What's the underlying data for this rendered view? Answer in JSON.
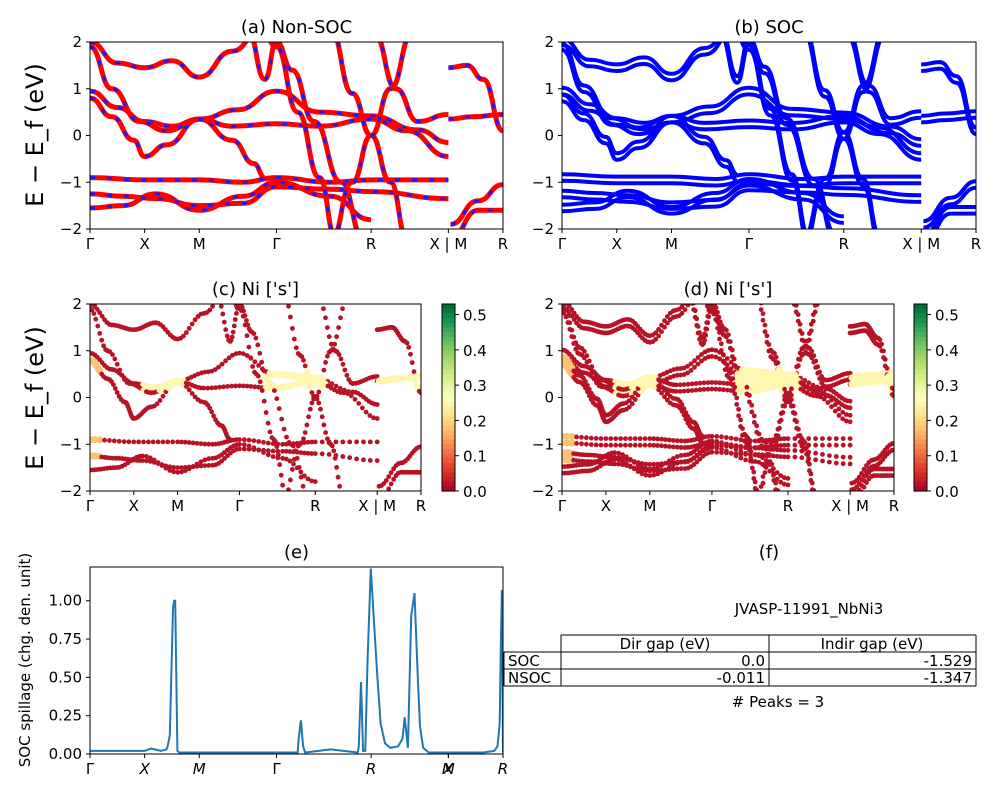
{
  "palette": {
    "nonsoc_red": "#ff0000",
    "nonsoc_blue": "#1a1aff",
    "soc_blue": "#0000ff",
    "spillage_line": "#1f77b4",
    "cmap": [
      "#a50026",
      "#d73027",
      "#f46d43",
      "#fdae61",
      "#fee08b",
      "#ffffbf",
      "#d9ef8b",
      "#a6d96a",
      "#66bd63",
      "#1a9850",
      "#006837"
    ]
  },
  "chart_data": [
    {
      "id": "a",
      "type": "line",
      "title": "(a) Non-SOC",
      "ylabel": "E − E_f (eV)",
      "ylim": [
        -2,
        2
      ],
      "yticks": [
        "2",
        "1",
        "0",
        "−1",
        "−2"
      ],
      "kpath": [
        {
          "label": "Γ",
          "k": 0
        },
        {
          "label": "X",
          "k": 0.5
        },
        {
          "label": "M",
          "k": 1.0
        },
        {
          "label": "Γ",
          "k": 1.707
        },
        {
          "label": "R",
          "k": 2.573
        },
        {
          "label": "X | M",
          "k": 3.28
        },
        {
          "label": "R",
          "k": 3.78
        }
      ],
      "break_after_k": 3.28,
      "style": "red solid with blue dashes"
    },
    {
      "id": "b",
      "type": "line",
      "title": "(b) SOC",
      "ylim": [
        -2,
        2
      ],
      "yticks": [
        "2",
        "1",
        "0",
        "−1",
        "−2"
      ],
      "kpath": [
        {
          "label": "Γ",
          "k": 0
        },
        {
          "label": "X",
          "k": 0.5
        },
        {
          "label": "M",
          "k": 1.0
        },
        {
          "label": "Γ",
          "k": 1.707
        },
        {
          "label": "R",
          "k": 2.573
        },
        {
          "label": "X | M",
          "k": 3.28
        },
        {
          "label": "R",
          "k": 3.78
        }
      ],
      "style": "blue, bands split by spin-orbit coupling"
    },
    {
      "id": "c",
      "type": "scatter",
      "title": "(c)  Ni ['s']",
      "ylabel": "E − E_f (eV)",
      "ylim": [
        -2,
        2
      ],
      "yticks": [
        "2",
        "1",
        "0",
        "−1",
        "−2"
      ],
      "kpath": [
        {
          "label": "Γ",
          "k": 0
        },
        {
          "label": "X",
          "k": 0.5
        },
        {
          "label": "M",
          "k": 1.0
        },
        {
          "label": "Γ",
          "k": 1.707
        },
        {
          "label": "R",
          "k": 2.573
        },
        {
          "label": "X | M",
          "k": 3.28
        },
        {
          "label": "R",
          "k": 3.78
        }
      ],
      "colorbar": {
        "range": [
          0,
          0.53
        ],
        "ticks": [
          "0.5",
          "0.4",
          "0.3",
          "0.2",
          "0.1",
          "0.0"
        ]
      }
    },
    {
      "id": "d",
      "type": "scatter",
      "title": "(d) Ni ['s']",
      "ylim": [
        -2,
        2
      ],
      "yticks": [
        "2",
        "1",
        "0",
        "−1",
        "−2"
      ],
      "kpath": [
        {
          "label": "Γ",
          "k": 0
        },
        {
          "label": "X",
          "k": 0.5
        },
        {
          "label": "M",
          "k": 1.0
        },
        {
          "label": "Γ",
          "k": 1.707
        },
        {
          "label": "R",
          "k": 2.573
        },
        {
          "label": "X | M",
          "k": 3.28
        },
        {
          "label": "R",
          "k": 3.78
        }
      ],
      "colorbar": {
        "range": [
          0,
          0.53
        ],
        "ticks": [
          "0.5",
          "0.4",
          "0.3",
          "0.2",
          "0.1",
          "0.0"
        ]
      }
    },
    {
      "id": "e",
      "type": "line",
      "title": "(e)",
      "ylabel": "SOC spillage (chg. den. unit)",
      "ylim": [
        0,
        1.22
      ],
      "yticks": [
        "1.00",
        "0.75",
        "0.50",
        "0.25",
        "0.00"
      ],
      "xlim": [
        0,
        3.78
      ],
      "kpath": [
        {
          "label": "Γ",
          "k": 0
        },
        {
          "label": "X",
          "k": 0.5
        },
        {
          "label": "M",
          "k": 1.0
        },
        {
          "label": "Γ",
          "k": 1.707
        },
        {
          "label": "R",
          "k": 2.573
        },
        {
          "label": "X",
          "k": 3.28
        },
        {
          "label": "M",
          "k": 3.28
        },
        {
          "label": "R",
          "k": 3.78
        }
      ],
      "x": [
        0,
        0.3,
        0.5,
        0.56,
        0.65,
        0.7,
        0.71,
        0.73,
        0.76,
        0.77,
        0.78,
        0.8,
        0.82,
        0.85,
        1.0,
        1.5,
        1.707,
        1.9,
        1.91,
        1.93,
        1.95,
        1.97,
        2.2,
        2.45,
        2.46,
        2.48,
        2.5,
        2.52,
        2.54,
        2.57,
        2.6,
        2.63,
        2.66,
        2.7,
        2.75,
        2.82,
        2.86,
        2.88,
        2.91,
        2.94,
        2.97,
        3.0,
        3.02,
        3.05,
        3.1,
        3.3,
        3.6,
        3.7,
        3.73,
        3.75,
        3.76,
        3.77,
        3.78
      ],
      "y": [
        0.02,
        0.02,
        0.02,
        0.035,
        0.02,
        0.03,
        0.05,
        0.12,
        0.95,
        1.0,
        1.0,
        0.02,
        0.01,
        0.01,
        0.01,
        0.01,
        0.01,
        0.01,
        0.1,
        0.22,
        0.05,
        0.01,
        0.03,
        0.01,
        0.05,
        0.47,
        0.02,
        0.02,
        0.6,
        1.21,
        0.85,
        0.5,
        0.2,
        0.07,
        0.04,
        0.05,
        0.1,
        0.24,
        0.04,
        0.9,
        1.05,
        0.5,
        0.18,
        0.04,
        0.01,
        0.01,
        0.01,
        0.02,
        0.05,
        0.2,
        0.7,
        1.07,
        0.01
      ]
    },
    {
      "id": "f",
      "type": "table",
      "title": "(f)",
      "label": "JVASP-11991_NbNi3",
      "columns": [
        "",
        "Dir gap (eV)",
        "Indir gap (eV)"
      ],
      "rows": [
        [
          "SOC",
          "0.0",
          "-1.529"
        ],
        [
          "NSOC",
          "-0.011",
          "-1.347"
        ]
      ],
      "footer": "# Peaks = 3"
    }
  ]
}
